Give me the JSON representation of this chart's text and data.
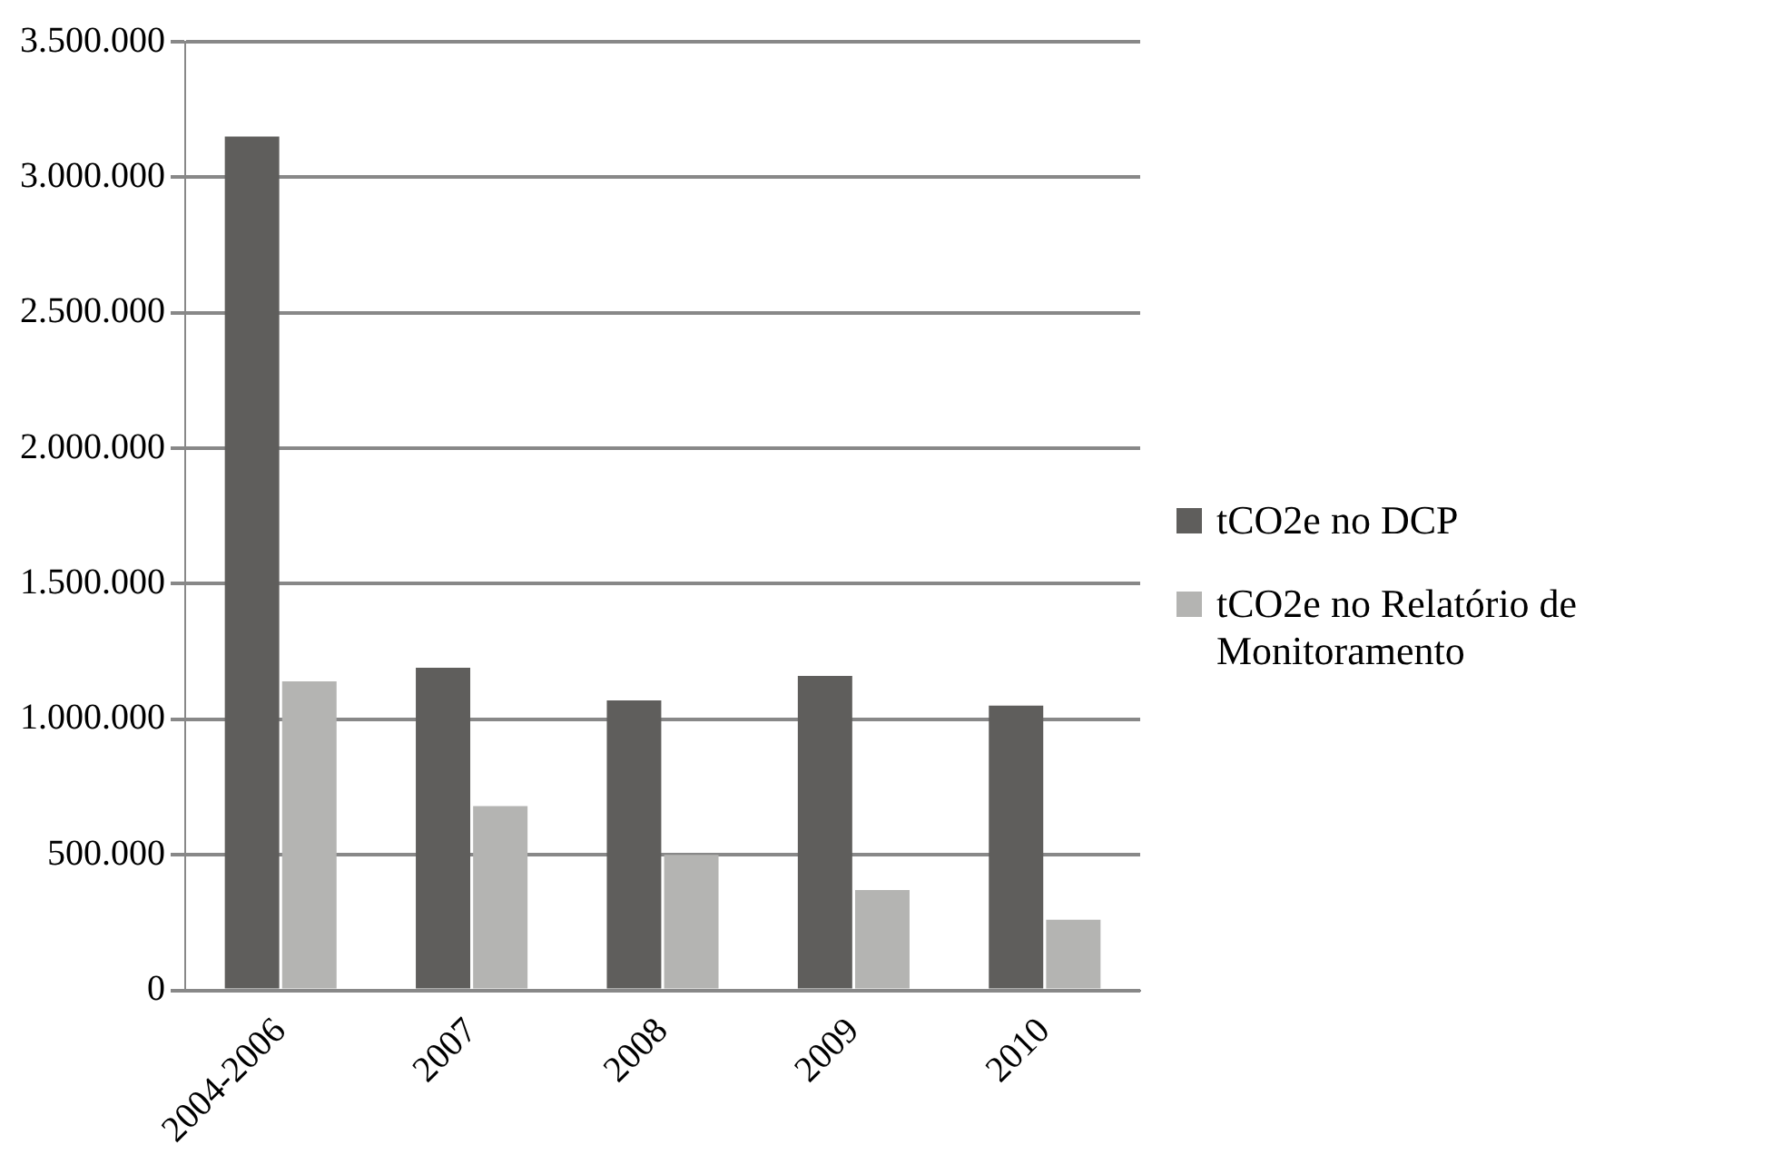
{
  "chart_data": {
    "type": "bar",
    "categories": [
      "2004-2006",
      "2007",
      "2008",
      "2009",
      "2010"
    ],
    "series": [
      {
        "name": "tCO2e no DCP",
        "color": "#5f5e5c",
        "values": [
          3150000,
          1190000,
          1070000,
          1160000,
          1050000
        ]
      },
      {
        "name": "tCO2e no Relatório de Monitoramento",
        "color": "#b4b4b2",
        "values": [
          1140000,
          680000,
          500000,
          370000,
          260000
        ]
      }
    ],
    "ylim": [
      0,
      3500000
    ],
    "yticks": [
      0,
      {
        "value": 500000,
        "label": "500.000"
      },
      {
        "value": 1000000,
        "label": "1.000.000"
      },
      {
        "value": 1500000,
        "label": "1.500.000"
      },
      {
        "value": 2000000,
        "label": "2.000.000"
      },
      {
        "value": 2500000,
        "label": "2.500.000"
      },
      {
        "value": 3000000,
        "label": "3.000.000"
      },
      {
        "value": 3500000,
        "label": "3.500.000"
      }
    ],
    "grid": "y",
    "legend": "right"
  }
}
